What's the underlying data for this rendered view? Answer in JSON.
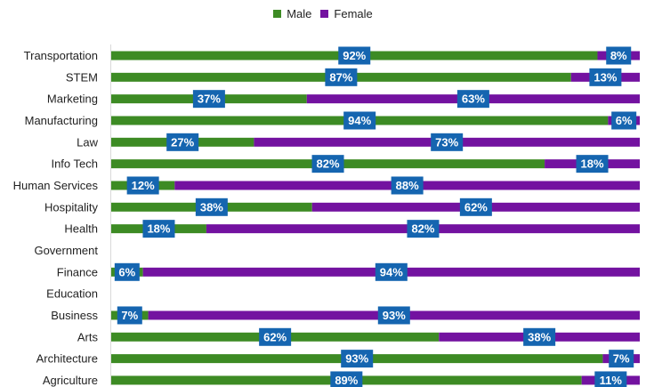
{
  "colors": {
    "male": "#3d8b24",
    "female": "#7312a0",
    "label_bg": "#1565b0",
    "label_text": "#ffffff"
  },
  "chart_data": {
    "type": "bar",
    "orientation": "horizontal",
    "stacked": "100%",
    "categories": [
      "Transportation",
      "STEM",
      "Marketing",
      "Manufacturing",
      "Law",
      "Info Tech",
      "Human Services",
      "Hospitality",
      "Health",
      "Government",
      "Finance",
      "Education",
      "Business",
      "Arts",
      "Architecture",
      "Agriculture"
    ],
    "series": [
      {
        "name": "Male",
        "values": [
          92,
          87,
          37,
          94,
          27,
          82,
          12,
          38,
          18,
          null,
          6,
          null,
          7,
          62,
          93,
          89
        ]
      },
      {
        "name": "Female",
        "values": [
          8,
          13,
          63,
          6,
          73,
          18,
          88,
          62,
          82,
          null,
          94,
          null,
          93,
          38,
          7,
          11
        ]
      }
    ],
    "data_labels": [
      [
        "92%",
        "8%"
      ],
      [
        "87%",
        "13%"
      ],
      [
        "37%",
        "63%"
      ],
      [
        "94%",
        "6%"
      ],
      [
        "27%",
        "73%"
      ],
      [
        "82%",
        "18%"
      ],
      [
        "12%",
        "88%"
      ],
      [
        "38%",
        "62%"
      ],
      [
        "18%",
        "82%"
      ],
      [
        null,
        null
      ],
      [
        "6%",
        "94%"
      ],
      [
        null,
        null
      ],
      [
        "7%",
        "93%"
      ],
      [
        "62%",
        "38%"
      ],
      [
        "93%",
        "7%"
      ],
      [
        "89%",
        "11%"
      ]
    ],
    "legend_position": "top-center",
    "grid": false
  }
}
